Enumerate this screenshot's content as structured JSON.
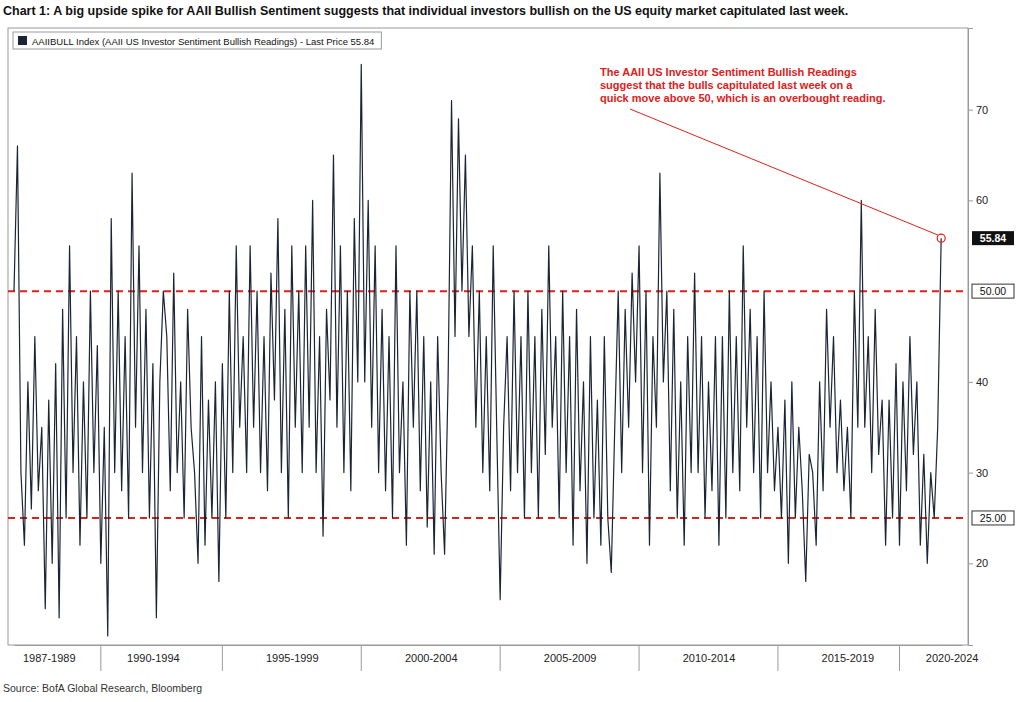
{
  "chart_data": {
    "type": "line",
    "title": "Chart 1: A big upside spike for AAII Bullish Sentiment suggests that individual investors bullish on the US equity market capitulated last week.",
    "source": "Source: BofA Global Research, Bloomberg",
    "categories": [
      null,
      null,
      null,
      null,
      null,
      null,
      null,
      null,
      null,
      null,
      "1987-1989",
      null,
      null,
      null,
      null,
      null,
      null,
      null,
      null,
      null,
      null,
      null,
      null,
      null,
      null,
      null,
      null,
      null,
      null,
      null,
      null,
      null,
      null,
      null,
      null,
      null,
      null,
      null,
      null,
      null,
      "1990-1994",
      null,
      null,
      null,
      null,
      null,
      null,
      null,
      null,
      null,
      null,
      null,
      null,
      null,
      null,
      null,
      null,
      null,
      null,
      null,
      null,
      null,
      null,
      null,
      null,
      null,
      null,
      null,
      null,
      null,
      null,
      null,
      null,
      null,
      null,
      null,
      null,
      null,
      null,
      null,
      "1995-1999",
      null,
      null,
      null,
      null,
      null,
      null,
      null,
      null,
      null,
      null,
      null,
      null,
      null,
      null,
      null,
      null,
      null,
      null,
      null,
      null,
      null,
      null,
      null,
      null,
      null,
      null,
      null,
      null,
      null,
      null,
      null,
      null,
      null,
      null,
      null,
      null,
      null,
      null,
      null,
      "2000-2004",
      null,
      null,
      null,
      null,
      null,
      null,
      null,
      null,
      null,
      null,
      null,
      null,
      null,
      null,
      null,
      null,
      null,
      null,
      null,
      null,
      null,
      null,
      null,
      null,
      null,
      null,
      null,
      null,
      null,
      null,
      null,
      null,
      null,
      null,
      null,
      null,
      null,
      null,
      null,
      "2005-2009",
      null,
      null,
      null,
      null,
      null,
      null,
      null,
      null,
      null,
      null,
      null,
      null,
      null,
      null,
      null,
      null,
      null,
      null,
      null,
      null,
      null,
      null,
      null,
      null,
      null,
      null,
      null,
      null,
      null,
      null,
      null,
      null,
      null,
      null,
      null,
      null,
      null,
      null,
      null,
      "2010-2014",
      null,
      null,
      null,
      null,
      null,
      null,
      null,
      null,
      null,
      null,
      null,
      null,
      null,
      null,
      null,
      null,
      null,
      null,
      null,
      null,
      null,
      null,
      null,
      null,
      null,
      null,
      null,
      null,
      null,
      null,
      null,
      null,
      null,
      null,
      null,
      null,
      null,
      null,
      null,
      "2015-2019",
      null,
      null,
      null,
      null,
      null,
      null,
      null,
      null,
      null,
      null,
      null,
      null,
      null,
      null,
      null,
      null,
      null,
      null,
      null,
      null,
      null,
      null,
      null,
      null,
      null,
      null,
      null,
      null,
      null,
      "2020-2024",
      null,
      null,
      null
    ],
    "series": [
      {
        "name": "AAIIBULL Index (AAII US Investor Sentiment Bullish Readings) - Last Price 55.84",
        "color": "#1b2536",
        "values": [
          50,
          66,
          30,
          22,
          40,
          26,
          45,
          28,
          35,
          15,
          38,
          20,
          42,
          14,
          48,
          25,
          55,
          30,
          45,
          22,
          40,
          25,
          50,
          30,
          44,
          20,
          35,
          12,
          58,
          30,
          50,
          28,
          45,
          25,
          63,
          35,
          55,
          30,
          48,
          25,
          42,
          14,
          40,
          50,
          45,
          28,
          52,
          30,
          40,
          25,
          48,
          35,
          30,
          20,
          45,
          22,
          38,
          25,
          40,
          18,
          42,
          25,
          50,
          30,
          55,
          35,
          45,
          30,
          55,
          35,
          50,
          30,
          45,
          28,
          52,
          38,
          58,
          30,
          48,
          25,
          55,
          35,
          50,
          30,
          55,
          35,
          60,
          30,
          45,
          23,
          48,
          38,
          65,
          35,
          55,
          30,
          50,
          28,
          58,
          40,
          75,
          40,
          60,
          35,
          55,
          30,
          48,
          28,
          45,
          25,
          55,
          30,
          40,
          22,
          50,
          35,
          50,
          28,
          45,
          24,
          40,
          21,
          45,
          30,
          21,
          40,
          71,
          45,
          69,
          50,
          65,
          45,
          55,
          35,
          50,
          30,
          45,
          28,
          55,
          35,
          16,
          35,
          45,
          28,
          50,
          30,
          45,
          25,
          50,
          30,
          45,
          25,
          48,
          32,
          55,
          35,
          45,
          25,
          50,
          30,
          45,
          22,
          48,
          28,
          40,
          20,
          45,
          25,
          38,
          22,
          45,
          25,
          19,
          35,
          50,
          30,
          48,
          35,
          52,
          40,
          55,
          30,
          50,
          22,
          45,
          35,
          63,
          40,
          50,
          28,
          48,
          25,
          40,
          22,
          45,
          30,
          52,
          30,
          45,
          25,
          40,
          28,
          45,
          22,
          45,
          25,
          50,
          30,
          45,
          28,
          55,
          35,
          48,
          30,
          45,
          25,
          50,
          30,
          40,
          28,
          35,
          25,
          38,
          20,
          40,
          25,
          35,
          28,
          18,
          32,
          30,
          22,
          40,
          28,
          48,
          35,
          45,
          30,
          38,
          28,
          35,
          25,
          50,
          35,
          60,
          35,
          45,
          30,
          48,
          32,
          38,
          22,
          38,
          25,
          42,
          22,
          40,
          28,
          45,
          32,
          40,
          22,
          32,
          20,
          30,
          25,
          35,
          55.84,
          null,
          null,
          null,
          null,
          null,
          null
        ]
      }
    ],
    "ylim": [
      11,
      79
    ],
    "yticks": [
      20,
      30,
      40,
      60,
      70
    ],
    "grid": false,
    "legend": "top-left",
    "reference_lines": [
      {
        "value": 50,
        "label": "50.00"
      },
      {
        "value": 25,
        "label": "25.00"
      }
    ],
    "last_price": {
      "value": 55.84,
      "label": "55.84"
    },
    "annotation": {
      "lines": [
        "The AAII US Investor Sentiment Bullish Readings",
        "suggest that the bulls capitulated last week on a",
        "quick move above 50, which is an overbought reading."
      ]
    }
  }
}
